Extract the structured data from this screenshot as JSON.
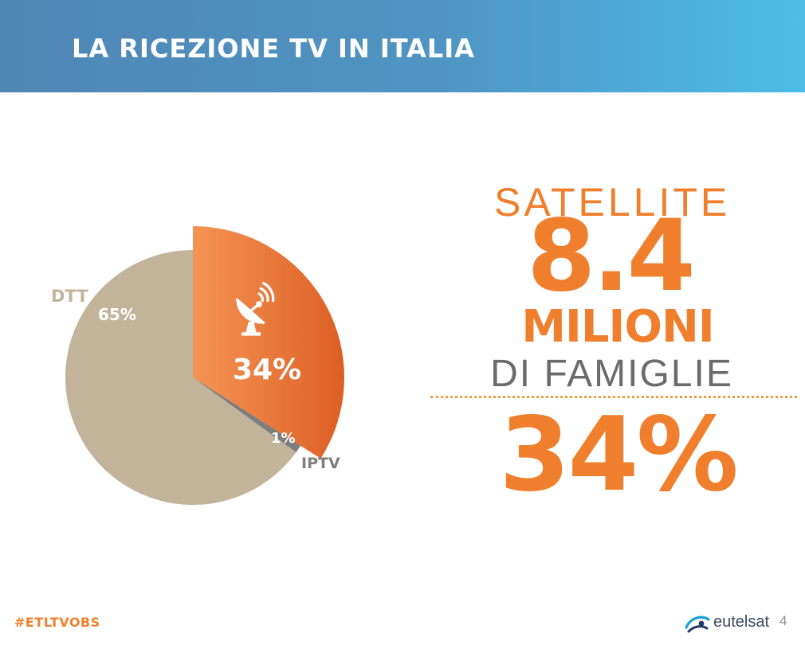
{
  "header": {
    "title": "LA RICEZIONE TV IN ITALIA"
  },
  "chart_data": {
    "type": "pie",
    "title": "",
    "slices": [
      {
        "label": "",
        "value": 34,
        "value_label": "34%",
        "color": "#ef7a2c",
        "exploded": true,
        "icon": "satellite-dish-icon"
      },
      {
        "label": "IPTV",
        "value": 1,
        "value_label": "1%",
        "color": "#7d7d7d"
      },
      {
        "label": "DTT",
        "value": 65,
        "value_label": "65%",
        "color": "#c1b49a"
      }
    ]
  },
  "stat": {
    "satellite_label": "SATELLITE",
    "households_value": "8.4",
    "millions_label": "MILIONI",
    "families_label": "DI FAMIGLIE",
    "share_value": "34%"
  },
  "footer": {
    "hashtag": "#ETLTVOBS",
    "logo_text": "eutelsat",
    "page_number": "4"
  },
  "colors": {
    "accent": "#f07f2d",
    "header_start": "#4f86b4",
    "header_end": "#4cbde8"
  }
}
